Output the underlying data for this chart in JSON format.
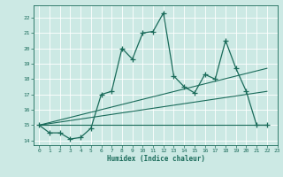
{
  "xlabel": "Humidex (Indice chaleur)",
  "xlim": [
    -0.5,
    23
  ],
  "ylim": [
    13.7,
    22.8
  ],
  "yticks": [
    14,
    15,
    16,
    17,
    18,
    19,
    20,
    21,
    22
  ],
  "xticks": [
    0,
    1,
    2,
    3,
    4,
    5,
    6,
    7,
    8,
    9,
    10,
    11,
    12,
    13,
    14,
    15,
    16,
    17,
    18,
    19,
    20,
    21,
    22,
    23
  ],
  "bg_color": "#cce9e4",
  "line_color": "#1a6b5a",
  "series1_x": [
    0,
    1,
    2,
    3,
    4,
    5,
    6,
    7,
    8,
    9,
    10,
    11,
    12,
    13,
    14,
    15,
    16,
    17,
    18,
    19,
    20,
    21,
    22
  ],
  "series1_y": [
    15.0,
    14.5,
    14.5,
    14.1,
    14.2,
    14.8,
    17.0,
    17.2,
    20.0,
    19.3,
    21.0,
    21.1,
    22.3,
    18.2,
    17.5,
    17.1,
    18.3,
    18.0,
    20.5,
    18.7,
    17.2,
    15.0,
    15.0
  ],
  "series2_x": [
    0,
    22
  ],
  "series2_y": [
    15.0,
    15.0
  ],
  "series3_x": [
    0,
    22
  ],
  "series3_y": [
    15.0,
    17.2
  ],
  "series4_x": [
    0,
    22
  ],
  "series4_y": [
    15.0,
    18.7
  ]
}
